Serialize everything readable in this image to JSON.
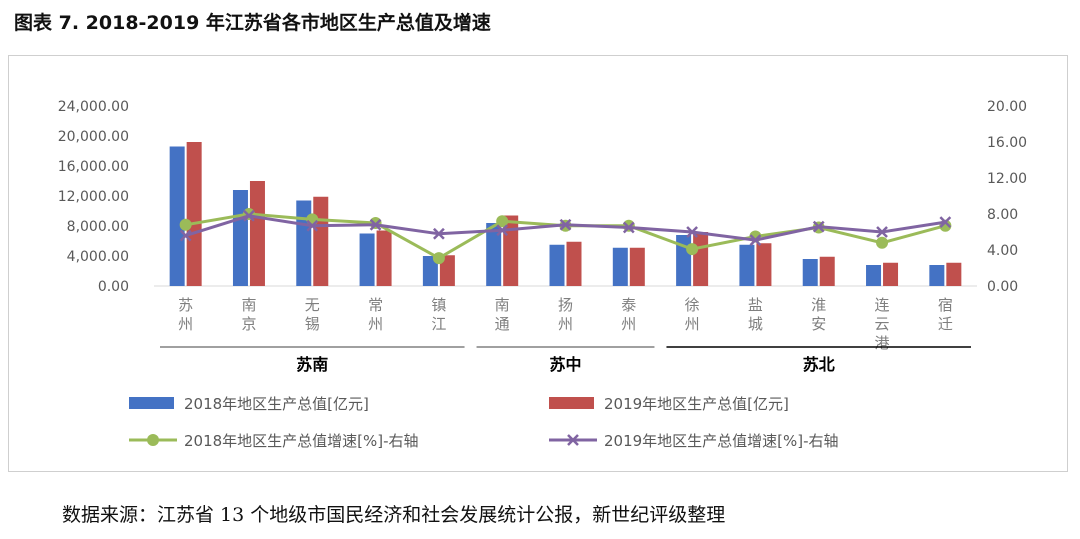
{
  "title": "图表 7. 2018-2019 年江苏省各市地区生产总值及增速",
  "source": "数据来源：江苏省 13 个地级市国民经济和社会发展统计公报，新世纪评级整理",
  "chart_data": {
    "type": "bar",
    "categories": [
      "苏州",
      "南京",
      "无锡",
      "常州",
      "镇江",
      "南通",
      "扬州",
      "泰州",
      "徐州",
      "盐城",
      "淮安",
      "连云港",
      "宿迁"
    ],
    "groups": [
      {
        "label": "苏南",
        "from": 0,
        "to": 4
      },
      {
        "label": "苏中",
        "from": 5,
        "to": 7
      },
      {
        "label": "苏北",
        "from": 8,
        "to": 12
      }
    ],
    "left_axis": {
      "ylim": [
        0,
        24000
      ],
      "ticks": [
        "0.00",
        "4,000.00",
        "8,000.00",
        "12,000.00",
        "16,000.00",
        "20,000.00",
        "24,000.00"
      ]
    },
    "right_axis": {
      "ylim": [
        0,
        20
      ],
      "ticks": [
        "0.00",
        "4.00",
        "8.00",
        "12.00",
        "16.00",
        "20.00"
      ]
    },
    "bar_series": [
      {
        "name": "2018年地区生产总值[亿元]",
        "color": "#4472C4",
        "values": [
          18600,
          12800,
          11400,
          7000,
          4000,
          8400,
          5500,
          5100,
          6800,
          5500,
          3600,
          2800,
          2800
        ]
      },
      {
        "name": "2019年地区生产总值[亿元]",
        "color": "#C0504D",
        "values": [
          19200,
          14000,
          11900,
          7400,
          4100,
          9400,
          5900,
          5100,
          7200,
          5700,
          3900,
          3100,
          3100
        ]
      }
    ],
    "line_series": [
      {
        "name": "2018年地区生产总值增速[%]-右轴",
        "color": "#9BBB59",
        "marker": "circle",
        "values": [
          6.8,
          8.0,
          7.4,
          7.0,
          3.1,
          7.2,
          6.7,
          6.7,
          4.1,
          5.5,
          6.5,
          4.8,
          6.7
        ]
      },
      {
        "name": "2019年地区生产总值增速[%]-右轴",
        "color": "#8064A2",
        "marker": "x",
        "values": [
          5.6,
          7.8,
          6.7,
          6.8,
          5.8,
          6.2,
          6.8,
          6.5,
          6.0,
          5.1,
          6.6,
          6.0,
          7.1
        ]
      }
    ],
    "legend_position": "bottom"
  }
}
